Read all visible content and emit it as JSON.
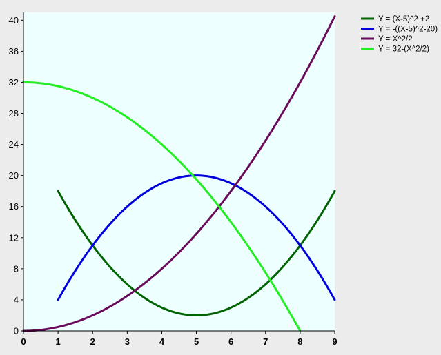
{
  "colors": {
    "window_bg": "#ececec",
    "plot_bg": "#eeffff",
    "axis": "#000000"
  },
  "chart_data": {
    "type": "line",
    "title": "",
    "xlabel": "",
    "ylabel": "",
    "xlim": [
      0,
      9
    ],
    "ylim": [
      0,
      41
    ],
    "xticks": [
      0,
      1,
      2,
      3,
      4,
      5,
      6,
      7,
      8,
      9
    ],
    "yticks": [
      0,
      4,
      8,
      12,
      16,
      20,
      24,
      28,
      32,
      36,
      40
    ],
    "grid": false,
    "legend_position": "top-right, outside plot",
    "series": [
      {
        "name": "Y = (X-5)^2 +2",
        "color": "#006400",
        "x": [
          1,
          2,
          3,
          4,
          5,
          6,
          7,
          8,
          9
        ],
        "y": [
          18,
          11,
          6,
          3,
          2,
          3,
          6,
          11,
          18
        ]
      },
      {
        "name": "Y = -((X-5)^2-20)",
        "color": "#0000dd",
        "x": [
          1,
          2,
          3,
          4,
          5,
          6,
          7,
          8,
          9
        ],
        "y": [
          4,
          11,
          16,
          19,
          20,
          19,
          16,
          11,
          4
        ]
      },
      {
        "name": "Y = X^2/2",
        "color": "#6a0a5a",
        "x": [
          0,
          1,
          2,
          3,
          4,
          5,
          6,
          7,
          8,
          9
        ],
        "y": [
          0,
          0.5,
          2,
          4.5,
          8,
          12.5,
          18,
          24.5,
          32,
          40.5
        ]
      },
      {
        "name": "Y = 32-(X^2/2)",
        "color": "#22ee22",
        "x": [
          0,
          1,
          2,
          3,
          4,
          5,
          6,
          7,
          8
        ],
        "y": [
          32,
          31.5,
          30,
          27.5,
          24,
          19.5,
          14,
          7.5,
          0
        ]
      }
    ]
  }
}
